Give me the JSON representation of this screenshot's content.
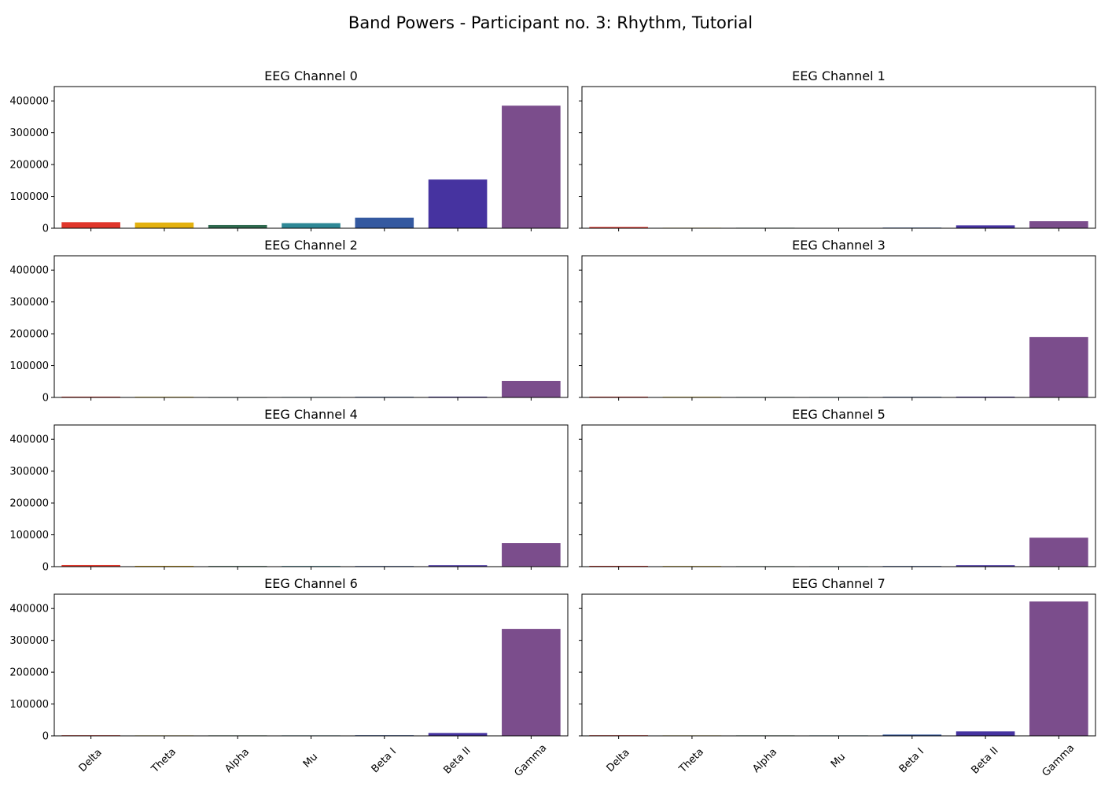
{
  "figure": {
    "title": "Band Powers - Participant no. 3: Rhythm, Tutorial"
  },
  "colors": {
    "Delta": "#e0362b",
    "Theta": "#e3b10f",
    "Alpha": "#2f6a4f",
    "Mu": "#2e8896",
    "Beta I": "#3459a0",
    "Beta II": "#4633a0",
    "Gamma": "#7b4d8c"
  },
  "chart_data": [
    {
      "type": "bar",
      "title": "EEG Channel 0",
      "categories": [
        "Delta",
        "Theta",
        "Alpha",
        "Mu",
        "Beta I",
        "Beta II",
        "Gamma"
      ],
      "values": [
        19000,
        18000,
        10000,
        16000,
        33000,
        153000,
        385000
      ],
      "ylim": [
        0,
        445000
      ],
      "yticks": [
        0,
        100000,
        200000,
        300000,
        400000
      ],
      "xlabel": "",
      "ylabel": ""
    },
    {
      "type": "bar",
      "title": "EEG Channel 1",
      "categories": [
        "Delta",
        "Theta",
        "Alpha",
        "Mu",
        "Beta I",
        "Beta II",
        "Gamma"
      ],
      "values": [
        4000,
        1500,
        1500,
        1000,
        2000,
        9000,
        22000
      ],
      "ylim": [
        0,
        445000
      ],
      "yticks": [
        0,
        100000,
        200000,
        300000,
        400000
      ],
      "xlabel": "",
      "ylabel": ""
    },
    {
      "type": "bar",
      "title": "EEG Channel 2",
      "categories": [
        "Delta",
        "Theta",
        "Alpha",
        "Mu",
        "Beta I",
        "Beta II",
        "Gamma"
      ],
      "values": [
        2500,
        2000,
        500,
        1500,
        2000,
        2500,
        52000
      ],
      "ylim": [
        0,
        445000
      ],
      "yticks": [
        0,
        100000,
        200000,
        300000,
        400000
      ],
      "xlabel": "",
      "ylabel": ""
    },
    {
      "type": "bar",
      "title": "EEG Channel 3",
      "categories": [
        "Delta",
        "Theta",
        "Alpha",
        "Mu",
        "Beta I",
        "Beta II",
        "Gamma"
      ],
      "values": [
        2500,
        2000,
        1500,
        1500,
        2000,
        2500,
        190000
      ],
      "ylim": [
        0,
        445000
      ],
      "yticks": [
        0,
        100000,
        200000,
        300000,
        400000
      ],
      "xlabel": "",
      "ylabel": ""
    },
    {
      "type": "bar",
      "title": "EEG Channel 4",
      "categories": [
        "Delta",
        "Theta",
        "Alpha",
        "Mu",
        "Beta I",
        "Beta II",
        "Gamma"
      ],
      "values": [
        5000,
        2500,
        2000,
        2000,
        2000,
        4500,
        74000
      ],
      "ylim": [
        0,
        445000
      ],
      "yticks": [
        0,
        100000,
        200000,
        300000,
        400000
      ],
      "xlabel": "",
      "ylabel": ""
    },
    {
      "type": "bar",
      "title": "EEG Channel 5",
      "categories": [
        "Delta",
        "Theta",
        "Alpha",
        "Mu",
        "Beta I",
        "Beta II",
        "Gamma"
      ],
      "values": [
        2500,
        2000,
        1500,
        1500,
        2000,
        4500,
        91000
      ],
      "ylim": [
        0,
        445000
      ],
      "yticks": [
        0,
        100000,
        200000,
        300000,
        400000
      ],
      "xlabel": "",
      "ylabel": ""
    },
    {
      "type": "bar",
      "title": "EEG Channel 6",
      "categories": [
        "Delta",
        "Theta",
        "Alpha",
        "Mu",
        "Beta I",
        "Beta II",
        "Gamma"
      ],
      "values": [
        2000,
        1500,
        1500,
        1500,
        2000,
        9000,
        336000
      ],
      "ylim": [
        0,
        445000
      ],
      "yticks": [
        0,
        100000,
        200000,
        300000,
        400000
      ],
      "xlabel": "",
      "ylabel": ""
    },
    {
      "type": "bar",
      "title": "EEG Channel 7",
      "categories": [
        "Delta",
        "Theta",
        "Alpha",
        "Mu",
        "Beta I",
        "Beta II",
        "Gamma"
      ],
      "values": [
        2000,
        1500,
        1500,
        1500,
        4000,
        14000,
        422000
      ],
      "ylim": [
        0,
        445000
      ],
      "yticks": [
        0,
        100000,
        200000,
        300000,
        400000
      ],
      "xlabel": "",
      "ylabel": ""
    }
  ]
}
